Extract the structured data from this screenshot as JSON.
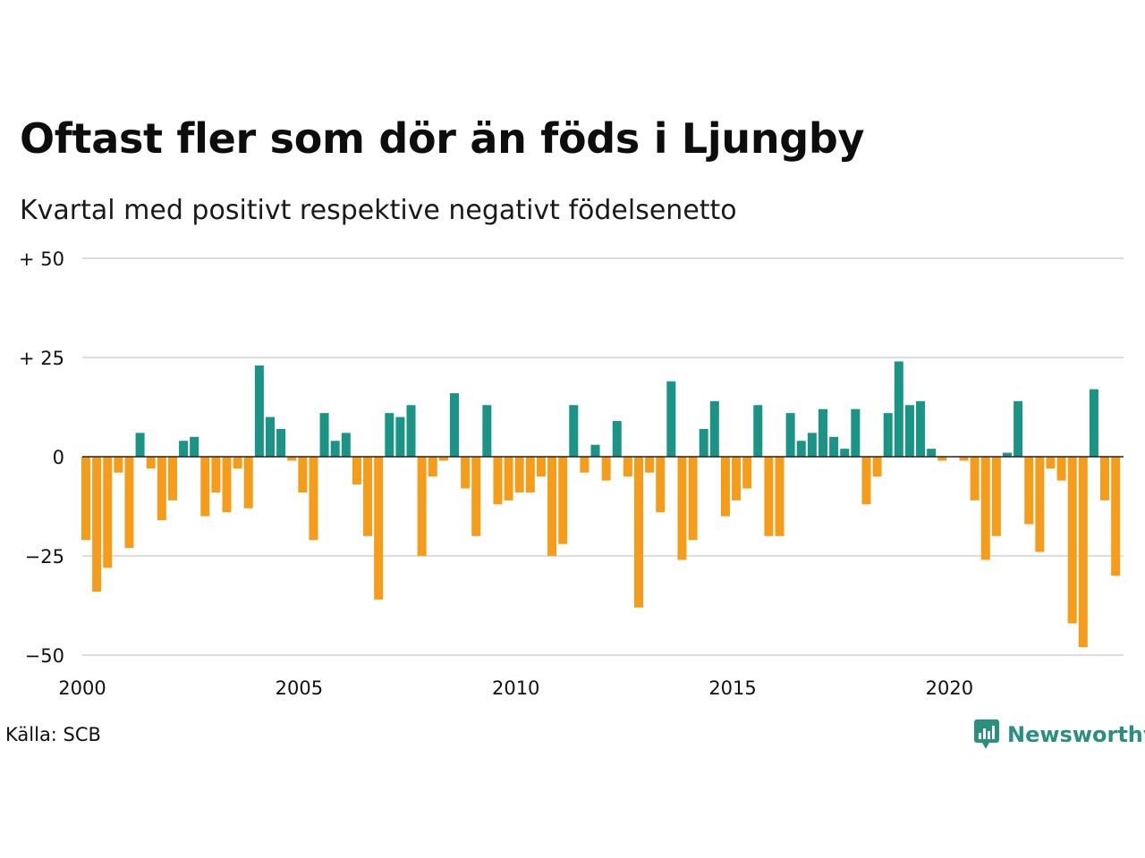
{
  "title": "Oftast fler som dör än föds i Ljungby",
  "subtitle": "Kvartal med positivt respektive negativt födelsenetto",
  "source": "Källa: SCB",
  "brand": "Newsworthy",
  "colors": {
    "positive": "#1a9485",
    "negative": "#f59c1a",
    "grid": "#dddddd",
    "zero": "#222222"
  },
  "chart_data": {
    "type": "bar",
    "title": "Oftast fler som dör än föds i Ljungby",
    "subtitle": "Kvartal med positivt respektive negativt födelsenetto",
    "xlabel": "",
    "ylabel": "",
    "ylim": [
      -50,
      50
    ],
    "grid": true,
    "start": "2000 Q1",
    "y_ticks": [
      {
        "value": 50,
        "label": "+ 50"
      },
      {
        "value": 25,
        "label": "+ 25"
      },
      {
        "value": 0,
        "label": "0"
      },
      {
        "value": -25,
        "label": "−25"
      },
      {
        "value": -50,
        "label": "−50"
      }
    ],
    "x_ticks": [
      {
        "value": 2000,
        "label": "2000"
      },
      {
        "value": 2005,
        "label": "2005"
      },
      {
        "value": 2010,
        "label": "2010"
      },
      {
        "value": 2015,
        "label": "2015"
      },
      {
        "value": 2020,
        "label": "2020"
      }
    ],
    "values": [
      -21,
      -34,
      -28,
      -4,
      -23,
      6,
      -3,
      -16,
      -11,
      4,
      5,
      -15,
      -9,
      -14,
      -3,
      -13,
      23,
      10,
      7,
      -1,
      -9,
      -21,
      11,
      4,
      6,
      -7,
      -20,
      -36,
      11,
      10,
      13,
      -25,
      -5,
      -1,
      16,
      -8,
      -20,
      13,
      -12,
      -11,
      -9,
      -9,
      -5,
      -25,
      -22,
      13,
      -4,
      3,
      -6,
      9,
      -5,
      -38,
      -4,
      -14,
      19,
      -26,
      -21,
      7,
      14,
      -15,
      -11,
      -8,
      13,
      -20,
      -20,
      11,
      4,
      6,
      12,
      5,
      2,
      12,
      -12,
      -5,
      11,
      24,
      13,
      14,
      2,
      -1,
      0,
      -1,
      -11,
      -26,
      -20,
      1,
      14,
      -17,
      -24,
      -3,
      -6,
      -42,
      -48,
      17,
      -11,
      -30
    ]
  }
}
